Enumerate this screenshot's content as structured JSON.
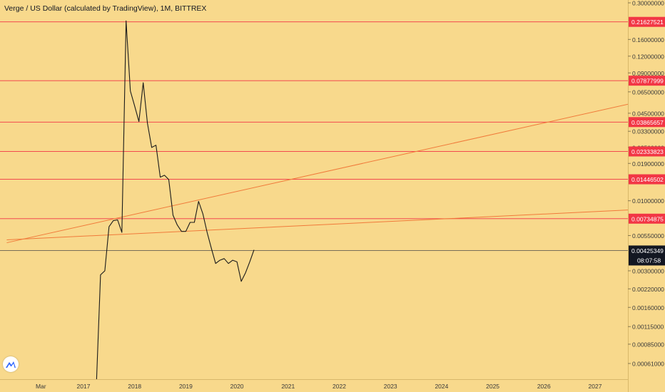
{
  "chart_title": "Verge / US Dollar (calculated by TradingView), 1M, BITTREX",
  "colors": {
    "background": "#f8d98c",
    "price_line": "#1a1a1a",
    "level_line": "#f23645",
    "trend_line": "#f07a3a",
    "level_label_bg": "#f23645",
    "current_label_bg": "#131722",
    "axis_text": "#3a3a3a",
    "logo": "#2962ff"
  },
  "icons": {
    "logo": "tradingview-logo-icon"
  },
  "chart_data": {
    "type": "line",
    "scale": "log",
    "grid": false,
    "ylim": [
      0.0004,
      0.3
    ],
    "y_ticks": [
      0.3,
      0.16,
      0.12,
      0.09,
      0.065,
      0.045,
      0.033,
      0.025,
      0.019,
      0.01,
      0.0055,
      0.003,
      0.0022,
      0.0016,
      0.00115,
      0.00085,
      0.00061
    ],
    "y_tick_labels": [
      "0.30000000",
      "0.16000000",
      "0.12000000",
      "0.09000000",
      "0.06500000",
      "0.04500000",
      "0.03300000",
      "0.02500000",
      "0.01900000",
      "0.01000000",
      "0.00550000",
      "0.00300000",
      "0.00220000",
      "0.00160000",
      "0.00115000",
      "0.00085000",
      "0.00061000"
    ],
    "x_ticks": [
      2016.167,
      2017.0,
      2018.0,
      2019.0,
      2020.0,
      2021.0,
      2022.0,
      2023.0,
      2024.0,
      2025.0,
      2026.0,
      2027.0
    ],
    "x_tick_labels": [
      "Mar",
      "2017",
      "2018",
      "2019",
      "2020",
      "2021",
      "2022",
      "2023",
      "2024",
      "2025",
      "2026",
      "2027"
    ],
    "series": [
      {
        "x": [
          2017.25,
          2017.333,
          2017.417,
          2017.5,
          2017.583,
          2017.667,
          2017.75,
          2017.833,
          2017.917,
          2018.0,
          2018.083,
          2018.167,
          2018.25,
          2018.333,
          2018.417,
          2018.5,
          2018.583,
          2018.667,
          2018.75,
          2018.833,
          2018.917,
          2019.0,
          2019.083,
          2019.167,
          2019.25,
          2019.333,
          2019.417,
          2019.5,
          2019.583,
          2019.667,
          2019.75,
          2019.833,
          2019.917,
          2020.0,
          2020.083,
          2020.167,
          2020.25,
          2020.333
        ],
        "y": [
          0.0004,
          0.0028,
          0.003,
          0.0064,
          0.0071,
          0.0072,
          0.0058,
          0.22,
          0.066,
          0.051,
          0.039,
          0.076,
          0.038,
          0.025,
          0.026,
          0.015,
          0.0155,
          0.0144,
          0.0078,
          0.0066,
          0.0059,
          0.0059,
          0.0069,
          0.0069,
          0.0099,
          0.008,
          0.0058,
          0.0044,
          0.0034,
          0.0036,
          0.0037,
          0.0034,
          0.0036,
          0.0035,
          0.0025,
          0.0029,
          0.0035,
          0.0043
        ]
      }
    ],
    "horizontal_levels": [
      {
        "value": 0.21627521,
        "label": "0.21627521"
      },
      {
        "value": 0.07877999,
        "label": "0.07877999"
      },
      {
        "value": 0.03865657,
        "label": "0.03865657"
      },
      {
        "value": 0.02333823,
        "label": "0.02333823"
      },
      {
        "value": 0.01446502,
        "label": "0.01446502"
      },
      {
        "value": 0.00734875,
        "label": "0.00734875"
      }
    ],
    "trend_lines": [
      {
        "x": [
          2015.5,
          2028.2
        ],
        "y": [
          0.00486,
          0.0586
        ]
      },
      {
        "x": [
          2015.5,
          2028.2
        ],
        "y": [
          0.00511,
          0.00873
        ]
      }
    ],
    "current_price": {
      "value": 0.00425349,
      "label": "0.00425349",
      "countdown": "08:07:58"
    }
  }
}
